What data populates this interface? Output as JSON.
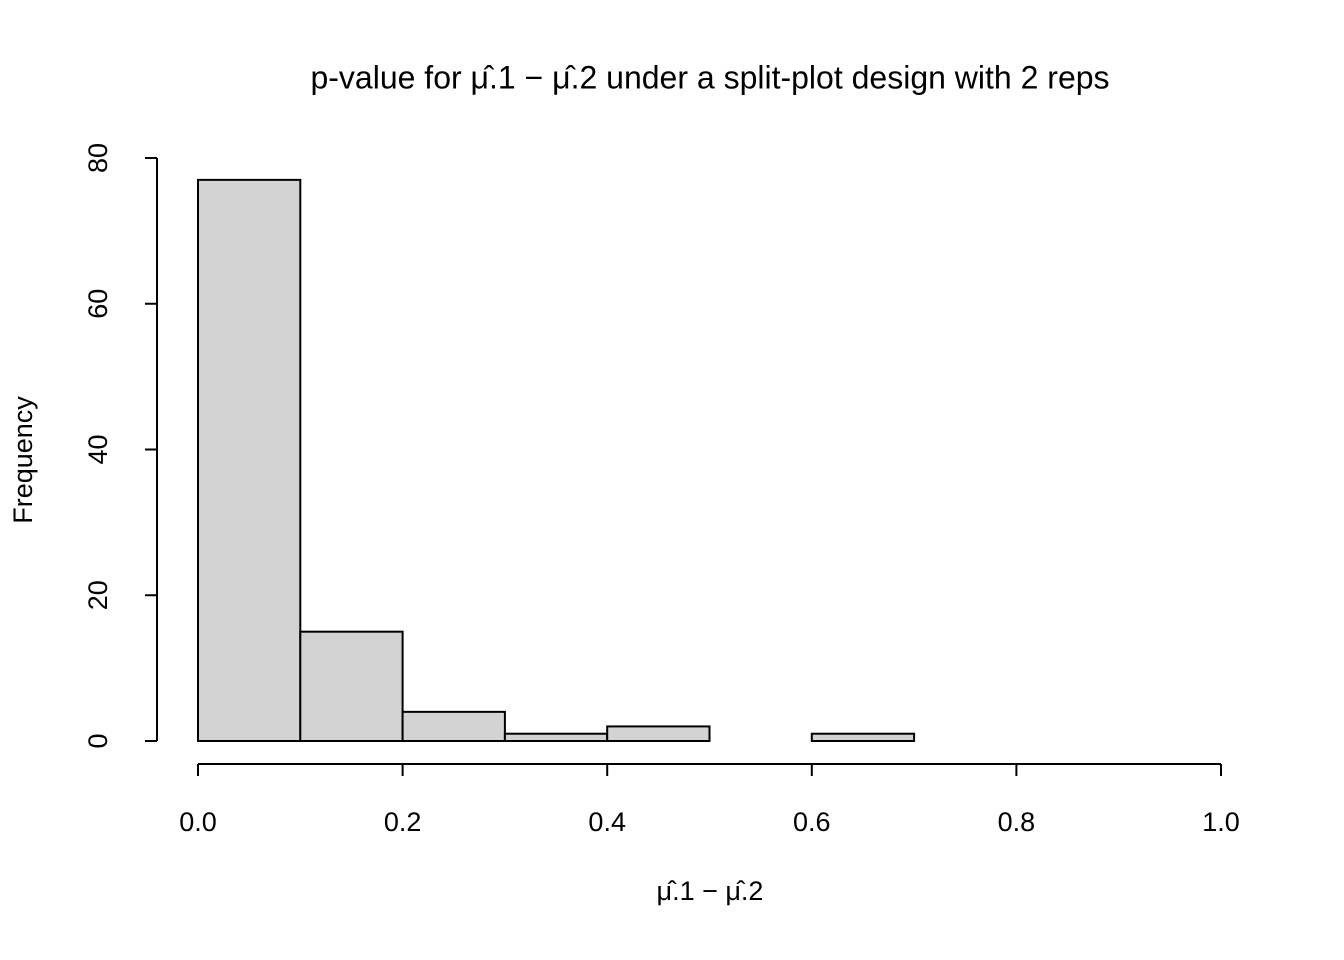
{
  "chart_data": {
    "type": "histogram",
    "title": "p-value for μ̂.1 − μ̂.2 under a split-plot design with 2 reps",
    "x_label": "μ̂.1 − μ̂.2",
    "y_label": "Frequency",
    "bins": [
      0,
      0.1,
      0.2,
      0.3,
      0.4,
      0.5,
      0.6,
      0.7
    ],
    "values": [
      77,
      15,
      4,
      1,
      2,
      0,
      1
    ],
    "color": "#d3d3d3",
    "xlim": [
      0,
      1
    ],
    "ylim": [
      0,
      80
    ],
    "xticks": [
      {
        "value": 0,
        "label": "0.0"
      },
      0.2,
      0.4,
      0.6,
      0.8,
      {
        "value": 1,
        "label": "1.0"
      }
    ],
    "yticks": [
      0,
      20,
      40,
      60,
      80
    ]
  }
}
